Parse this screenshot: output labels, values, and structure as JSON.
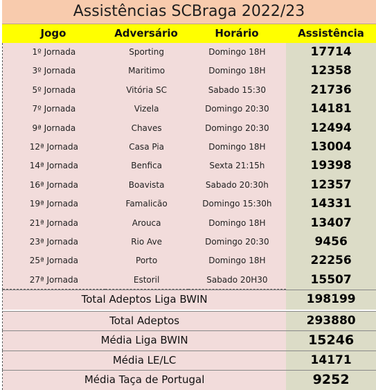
{
  "title": "Assistências SCBraga 2022/23",
  "headers": {
    "jogo": "Jogo",
    "adversario": "Adversário",
    "horario": "Horário",
    "assistencia": "Assistência"
  },
  "rows": [
    {
      "jogo": "1º Jornada",
      "adversario": "Sporting",
      "horario": "Domingo 18H",
      "assistencia": "17714"
    },
    {
      "jogo": "3º Jornada",
      "adversario": "Maritimo",
      "horario": "Domingo 18H",
      "assistencia": "12358"
    },
    {
      "jogo": "5º Jornada",
      "adversario": "Vitória SC",
      "horario": "Sabado 15:30",
      "assistencia": "21736"
    },
    {
      "jogo": "7º Jornada",
      "adversario": "Vizela",
      "horario": "Domingo 20:30",
      "assistencia": "14181"
    },
    {
      "jogo": "9ª Jornada",
      "adversario": "Chaves",
      "horario": "Domingo 20:30",
      "assistencia": "12494"
    },
    {
      "jogo": "12ª Jornada",
      "adversario": "Casa Pia",
      "horario": "Domingo 18H",
      "assistencia": "13004"
    },
    {
      "jogo": "14ª Jornada",
      "adversario": "Benfica",
      "horario": "Sexta 21:15h",
      "assistencia": "19398"
    },
    {
      "jogo": "16ª Jornada",
      "adversario": "Boavista",
      "horario": "Sabado 20:30h",
      "assistencia": "12357"
    },
    {
      "jogo": "19ª Jornada",
      "adversario": "Famalicão",
      "horario": "Domingo 15:30h",
      "assistencia": "14331"
    },
    {
      "jogo": "21ª Jornada",
      "adversario": "Arouca",
      "horario": "Domingo 18H",
      "assistencia": "13407"
    },
    {
      "jogo": "23ª Jornada",
      "adversario": "Rio Ave",
      "horario": "Domingo 20:30",
      "assistencia": "9456"
    },
    {
      "jogo": "25ª Jornada",
      "adversario": "Porto",
      "horario": "Domingo 18H",
      "assistencia": "22256"
    },
    {
      "jogo": "27ª Jornada",
      "adversario": "Estoril",
      "horario": "Sabado 20H30",
      "assistencia": "15507"
    }
  ],
  "summary": {
    "total_liga": {
      "label": "Total Adeptos Liga BWIN",
      "value": "198199"
    },
    "total": {
      "label": "Total Adeptos",
      "value": "293880"
    },
    "media_liga": {
      "label": "Média Liga BWIN",
      "value": "15246"
    },
    "media_lelc": {
      "label": "Média LE/LC",
      "value": "14171"
    },
    "media_taca": {
      "label": "Média Taça de Portugal",
      "value": "9252"
    }
  }
}
